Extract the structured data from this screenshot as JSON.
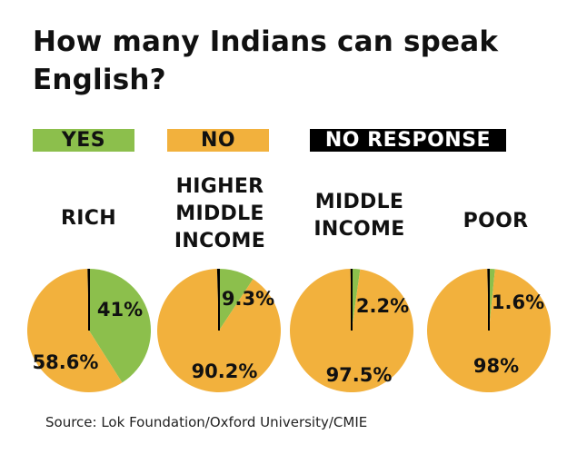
{
  "title": "How many Indians can speak English?",
  "legend": [
    {
      "label": "YES",
      "color": "#8cbf4c"
    },
    {
      "label": "NO",
      "color": "#f2b13d"
    },
    {
      "label": "NO RESPONSE",
      "color": "#000000"
    }
  ],
  "source": "Source: Lok Foundation/Oxford University/CMIE",
  "chart_data": {
    "type": "pie",
    "title": "How many Indians can speak English?",
    "series_names": [
      "YES",
      "NO",
      "NO RESPONSE"
    ],
    "colors": {
      "yes": "#8cbf4c",
      "no": "#f2b13d",
      "no_response": "#000000"
    },
    "groups": [
      {
        "label_lines": [
          "RICH"
        ],
        "yes": 41,
        "no": 58.6,
        "yes_label": "41%",
        "no_label": "58.6%"
      },
      {
        "label_lines": [
          "HIGHER",
          "MIDDLE",
          "INCOME"
        ],
        "yes": 9.3,
        "no": 90.2,
        "yes_label": "9.3%",
        "no_label": "90.2%"
      },
      {
        "label_lines": [
          "MIDDLE",
          "INCOME"
        ],
        "yes": 2.2,
        "no": 97.5,
        "yes_label": "2.2%",
        "no_label": "97.5%"
      },
      {
        "label_lines": [
          "POOR"
        ],
        "yes": 1.6,
        "no": 98,
        "yes_label": "1.6%",
        "no_label": "98%"
      }
    ]
  }
}
